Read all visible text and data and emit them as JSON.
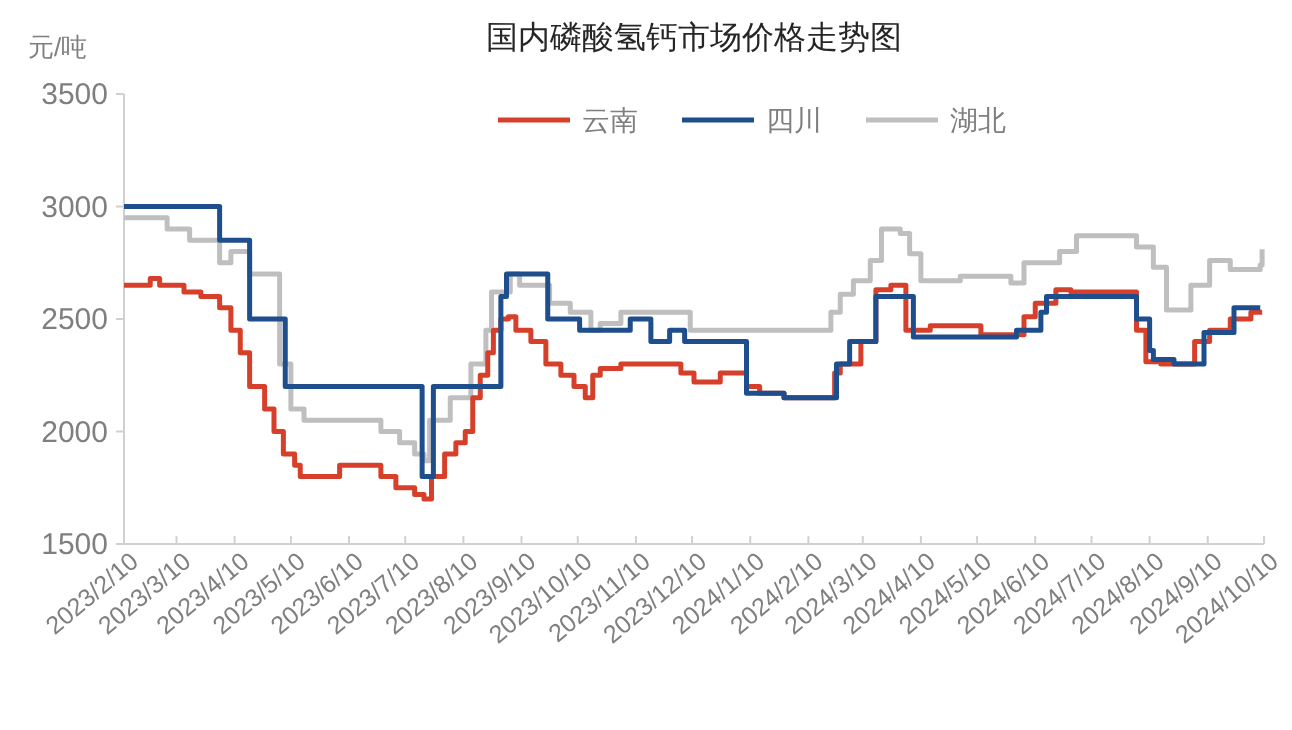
{
  "chart_data": {
    "type": "step",
    "title": "国内磷酸氢钙市场价格走势图",
    "ylabel": "元/吨",
    "xlim": [
      "2023-02-10",
      "2024-10-10"
    ],
    "xticks": [
      {
        "value": "2023-02-10",
        "label": "2023/2/10"
      },
      {
        "value": "2023-03-10",
        "label": "2023/3/10"
      },
      {
        "value": "2023-04-10",
        "label": "2023/4/10"
      },
      {
        "value": "2023-05-10",
        "label": "2023/5/10"
      },
      {
        "value": "2023-06-10",
        "label": "2023/6/10"
      },
      {
        "value": "2023-07-10",
        "label": "2023/7/10"
      },
      {
        "value": "2023-08-10",
        "label": "2023/8/10"
      },
      {
        "value": "2023-09-10",
        "label": "2023/9/10"
      },
      {
        "value": "2023-10-10",
        "label": "2023/10/10"
      },
      {
        "value": "2023-11-10",
        "label": "2023/11/10"
      },
      {
        "value": "2023-12-10",
        "label": "2023/12/10"
      },
      {
        "value": "2024-01-10",
        "label": "2024/1/10"
      },
      {
        "value": "2024-02-10",
        "label": "2024/2/10"
      },
      {
        "value": "2024-03-10",
        "label": "2024/3/10"
      },
      {
        "value": "2024-04-10",
        "label": "2024/4/10"
      },
      {
        "value": "2024-05-10",
        "label": "2024/5/10"
      },
      {
        "value": "2024-06-10",
        "label": "2024/6/10"
      },
      {
        "value": "2024-07-10",
        "label": "2024/7/10"
      },
      {
        "value": "2024-08-10",
        "label": "2024/8/10"
      },
      {
        "value": "2024-09-10",
        "label": "2024/9/10"
      },
      {
        "value": "2024-10-10",
        "label": "2024/10/10"
      }
    ],
    "ylim": [
      1500,
      3500
    ],
    "yticks": [
      1500,
      2000,
      2500,
      3000,
      3500
    ],
    "grid": false,
    "legend": "top",
    "series": [
      {
        "name": "云南",
        "color": "#d6402a",
        "x": [
          "2023-02-10",
          "2023-02-24",
          "2023-03-01",
          "2023-03-14",
          "2023-03-23",
          "2023-04-02",
          "2023-04-08",
          "2023-04-13",
          "2023-04-18",
          "2023-04-26",
          "2023-05-01",
          "2023-05-06",
          "2023-05-12",
          "2023-05-15",
          "2023-06-05",
          "2023-06-27",
          "2023-07-05",
          "2023-07-15",
          "2023-07-20",
          "2023-07-24",
          "2023-07-31",
          "2023-08-06",
          "2023-08-11",
          "2023-08-15",
          "2023-08-19",
          "2023-08-23",
          "2023-08-26",
          "2023-08-30",
          "2023-09-03",
          "2023-09-07",
          "2023-09-15",
          "2023-09-23",
          "2023-10-01",
          "2023-10-08",
          "2023-10-14",
          "2023-10-18",
          "2023-10-22",
          "2023-11-02",
          "2023-12-04",
          "2023-12-11",
          "2023-12-25",
          "2024-01-08",
          "2024-01-15",
          "2024-01-28",
          "2024-02-24",
          "2024-02-27",
          "2024-03-09",
          "2024-03-17",
          "2024-03-25",
          "2024-04-02",
          "2024-04-15",
          "2024-05-12",
          "2024-06-04",
          "2024-06-10",
          "2024-06-21",
          "2024-06-29",
          "2024-08-03",
          "2024-08-08",
          "2024-08-16",
          "2024-09-03",
          "2024-09-11",
          "2024-09-22",
          "2024-10-03",
          "2024-10-09"
        ],
        "values": [
          2650,
          2680,
          2650,
          2620,
          2600,
          2550,
          2450,
          2350,
          2200,
          2100,
          2000,
          1900,
          1850,
          1800,
          1850,
          1800,
          1750,
          1720,
          1700,
          1800,
          1900,
          1950,
          2000,
          2150,
          2250,
          2350,
          2450,
          2500,
          2510,
          2450,
          2400,
          2300,
          2250,
          2200,
          2150,
          2250,
          2280,
          2300,
          2260,
          2220,
          2260,
          2200,
          2170,
          2150,
          2260,
          2300,
          2400,
          2630,
          2650,
          2450,
          2470,
          2430,
          2510,
          2570,
          2630,
          2620,
          2450,
          2310,
          2300,
          2400,
          2450,
          2500,
          2530,
          2530
        ]
      },
      {
        "name": "四川",
        "color": "#1f4e8c",
        "x": [
          "2023-02-10",
          "2023-04-02",
          "2023-04-18",
          "2023-05-07",
          "2023-07-19",
          "2023-07-25",
          "2023-08-30",
          "2023-09-02",
          "2023-09-24",
          "2023-10-11",
          "2023-11-07",
          "2023-11-18",
          "2023-11-28",
          "2023-12-06",
          "2024-01-08",
          "2024-01-28",
          "2024-02-25",
          "2024-03-03",
          "2024-03-17",
          "2024-04-06",
          "2024-05-31",
          "2024-06-13",
          "2024-06-16",
          "2024-08-03",
          "2024-08-10",
          "2024-08-12",
          "2024-08-23",
          "2024-09-08",
          "2024-09-24",
          "2024-10-08"
        ],
        "values": [
          3000,
          2850,
          2500,
          2200,
          1800,
          2200,
          2600,
          2700,
          2500,
          2450,
          2500,
          2400,
          2450,
          2400,
          2170,
          2150,
          2300,
          2400,
          2600,
          2420,
          2450,
          2530,
          2600,
          2500,
          2360,
          2320,
          2300,
          2440,
          2550,
          2550
        ]
      },
      {
        "name": "湖北",
        "color": "#bfbfbf",
        "x": [
          "2023-02-10",
          "2023-03-05",
          "2023-03-17",
          "2023-04-02",
          "2023-04-08",
          "2023-04-18",
          "2023-05-04",
          "2023-05-10",
          "2023-05-17",
          "2023-06-27",
          "2023-07-07",
          "2023-07-15",
          "2023-07-20",
          "2023-07-23",
          "2023-08-03",
          "2023-08-14",
          "2023-08-22",
          "2023-08-25",
          "2023-09-04",
          "2023-09-09",
          "2023-09-25",
          "2023-10-06",
          "2023-10-17",
          "2023-10-22",
          "2023-11-02",
          "2023-12-09",
          "2024-02-22",
          "2024-02-27",
          "2024-03-05",
          "2024-03-14",
          "2024-03-20",
          "2024-03-30",
          "2024-04-04",
          "2024-04-10",
          "2024-05-01",
          "2024-05-28",
          "2024-06-04",
          "2024-06-23",
          "2024-07-02",
          "2024-08-03",
          "2024-08-12",
          "2024-08-19",
          "2024-09-01",
          "2024-09-11",
          "2024-09-22",
          "2024-10-08",
          "2024-10-09"
        ],
        "values": [
          2950,
          2900,
          2850,
          2750,
          2800,
          2700,
          2300,
          2100,
          2050,
          2000,
          1950,
          1900,
          1870,
          2050,
          2150,
          2300,
          2450,
          2620,
          2700,
          2650,
          2570,
          2530,
          2450,
          2480,
          2530,
          2450,
          2530,
          2610,
          2670,
          2760,
          2900,
          2880,
          2790,
          2670,
          2690,
          2660,
          2750,
          2800,
          2870,
          2820,
          2730,
          2540,
          2650,
          2760,
          2720,
          2740,
          2810
        ]
      }
    ]
  }
}
